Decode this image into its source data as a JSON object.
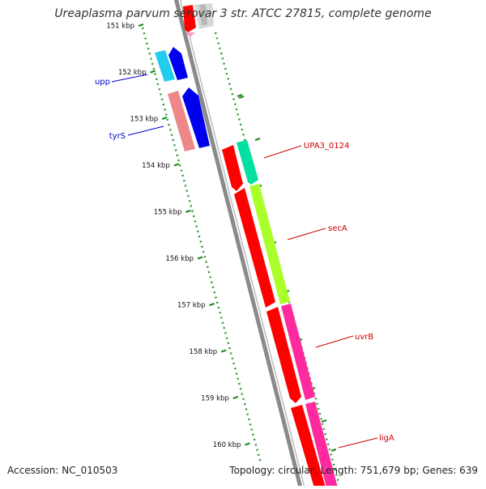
{
  "title": "Ureaplasma parvum serovar 3 str. ATCC 27815, complete genome",
  "footer": {
    "accession": "Accession: NC_010503",
    "summary": "Topology: circular; Length: 751,679 bp; Genes: 639"
  },
  "ruler": {
    "ticks": [
      {
        "kbp": 151,
        "label": "151 kbp"
      },
      {
        "kbp": 152,
        "label": "152 kbp"
      },
      {
        "kbp": 153,
        "label": "153 kbp"
      },
      {
        "kbp": 154,
        "label": "154 kbp"
      },
      {
        "kbp": 155,
        "label": "155 kbp"
      },
      {
        "kbp": 156,
        "label": "156 kbp"
      },
      {
        "kbp": 157,
        "label": "157 kbp"
      },
      {
        "kbp": 158,
        "label": "158 kbp"
      },
      {
        "kbp": 159,
        "label": "159 kbp"
      },
      {
        "kbp": 160,
        "label": "160 kbp"
      }
    ]
  },
  "gene_labels": [
    {
      "name": "upp",
      "color": "#0000cc"
    },
    {
      "name": "tyrS",
      "color": "#0000cc"
    },
    {
      "name": "UPA3_0124",
      "color": "#cc0000"
    },
    {
      "name": "secA",
      "color": "#cc0000"
    },
    {
      "name": "uvrB",
      "color": "#cc0000"
    },
    {
      "name": "ligA",
      "color": "#cc0000"
    }
  ],
  "colors": {
    "backbone": "#888888",
    "ruler": "#1a8a1a",
    "gc_dots": "#2a9a2a",
    "red": "#ff0000",
    "magenta": "#ff2aa0",
    "lime": "#aaff2a",
    "teal": "#00e0a0",
    "blue": "#0000ee",
    "cyan": "#22ccee",
    "salmon": "#ee8888"
  }
}
